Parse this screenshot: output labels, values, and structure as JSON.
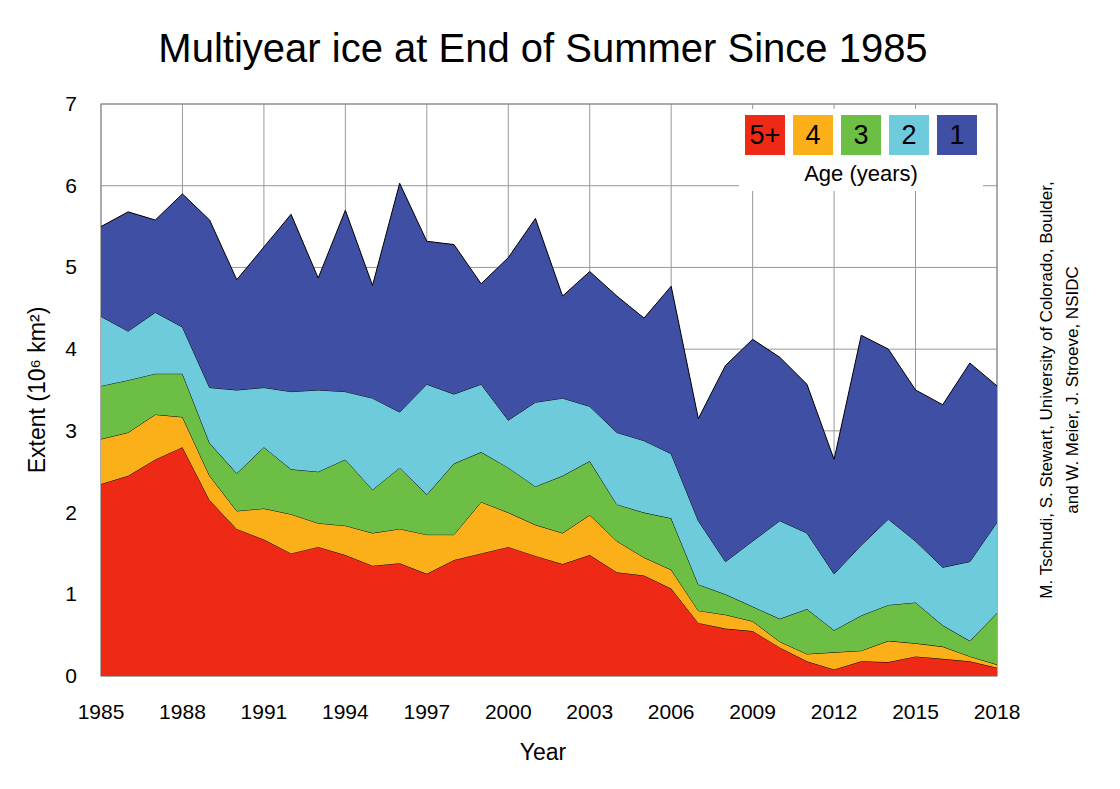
{
  "chart_data": {
    "type": "area",
    "stacked": true,
    "title": "Multiyear ice at End of Summer Since 1985",
    "x_label": "Year",
    "y_label": "Extent (10⁶ km²)",
    "legend_title": "Age (years)",
    "legend": "top-right",
    "grid": true,
    "annotations": [
      "M. Tschudi, S. Stewart, University of Colorado, Boulder,",
      "and W. Meier, J. Stroeve, NSIDC"
    ],
    "x": [
      1985,
      1986,
      1987,
      1988,
      1989,
      1990,
      1991,
      1992,
      1993,
      1994,
      1995,
      1996,
      1997,
      1998,
      1999,
      2000,
      2001,
      2002,
      2003,
      2004,
      2005,
      2006,
      2007,
      2008,
      2009,
      2010,
      2011,
      2012,
      2013,
      2014,
      2015,
      2016,
      2017,
      2018
    ],
    "xlim": [
      1985,
      2018
    ],
    "xticks": [
      1985,
      1988,
      1991,
      1994,
      1997,
      2000,
      2003,
      2006,
      2009,
      2012,
      2015,
      2018
    ],
    "ylim": [
      0,
      7
    ],
    "yticks": [
      0,
      1,
      2,
      3,
      4,
      5,
      6,
      7
    ],
    "series": [
      {
        "name": "5+",
        "color": "#ee2a16",
        "values": [
          2.35,
          2.45,
          2.65,
          2.8,
          2.15,
          1.8,
          1.67,
          1.5,
          1.58,
          1.48,
          1.35,
          1.38,
          1.25,
          1.42,
          1.5,
          1.58,
          1.47,
          1.37,
          1.48,
          1.27,
          1.23,
          1.07,
          0.65,
          0.58,
          0.55,
          0.35,
          0.18,
          0.08,
          0.18,
          0.17,
          0.24,
          0.21,
          0.18,
          0.1
        ]
      },
      {
        "name": "4",
        "color": "#fbb01a",
        "values": [
          0.55,
          0.53,
          0.55,
          0.37,
          0.3,
          0.22,
          0.38,
          0.48,
          0.29,
          0.36,
          0.4,
          0.42,
          0.48,
          0.31,
          0.63,
          0.42,
          0.38,
          0.38,
          0.49,
          0.38,
          0.22,
          0.23,
          0.15,
          0.17,
          0.12,
          0.07,
          0.09,
          0.21,
          0.13,
          0.26,
          0.16,
          0.15,
          0.06,
          0.04
        ]
      },
      {
        "name": "3",
        "color": "#6cbe45",
        "values": [
          0.65,
          0.64,
          0.5,
          0.53,
          0.4,
          0.46,
          0.75,
          0.55,
          0.63,
          0.81,
          0.53,
          0.75,
          0.49,
          0.87,
          0.61,
          0.55,
          0.47,
          0.7,
          0.66,
          0.45,
          0.55,
          0.63,
          0.32,
          0.25,
          0.18,
          0.28,
          0.55,
          0.27,
          0.43,
          0.44,
          0.5,
          0.26,
          0.19,
          0.63
        ]
      },
      {
        "name": "2",
        "color": "#6dcbdb",
        "values": [
          0.85,
          0.6,
          0.75,
          0.57,
          0.68,
          1.02,
          0.73,
          0.95,
          1.0,
          0.83,
          1.12,
          0.68,
          1.35,
          0.85,
          0.83,
          0.58,
          1.03,
          0.95,
          0.67,
          0.88,
          0.88,
          0.79,
          0.78,
          0.4,
          0.8,
          1.2,
          0.93,
          0.69,
          0.86,
          1.05,
          0.75,
          0.71,
          0.97,
          1.11
        ]
      },
      {
        "name": "1",
        "color": "#3f4fa3",
        "values": [
          1.1,
          1.46,
          1.13,
          1.63,
          2.05,
          1.35,
          1.72,
          2.17,
          1.37,
          2.22,
          1.38,
          2.8,
          1.75,
          1.83,
          1.23,
          1.99,
          2.25,
          1.25,
          1.65,
          1.67,
          1.5,
          2.05,
          1.25,
          2.4,
          2.47,
          2.0,
          1.82,
          1.4,
          2.57,
          2.08,
          1.85,
          1.99,
          2.43,
          1.67
        ]
      }
    ]
  }
}
